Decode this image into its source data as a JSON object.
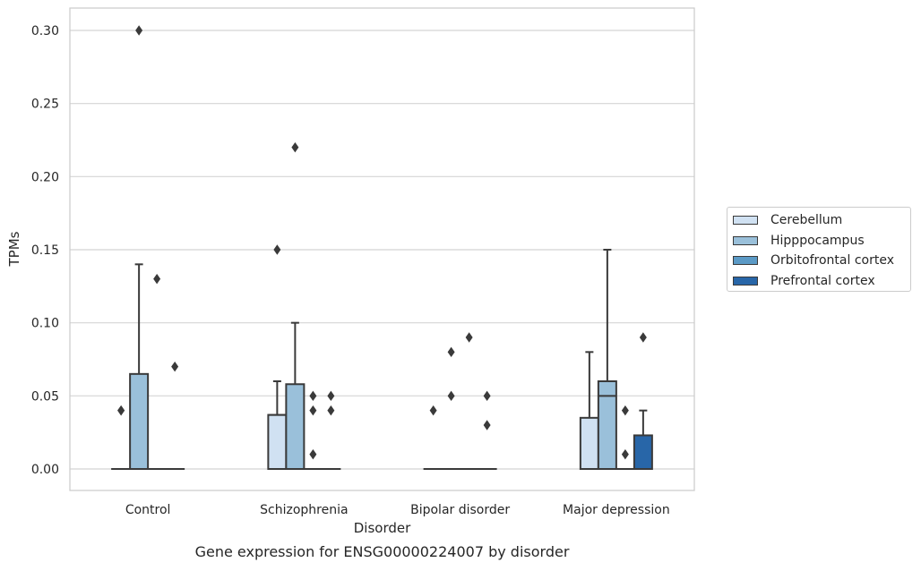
{
  "chart_data": {
    "type": "box",
    "title": "Gene expression for ENSG00000224007 by disorder",
    "xlabel": "Disorder",
    "ylabel": "TPMs",
    "ylim": [
      -0.015,
      0.315
    ],
    "y_ticks": [
      "0.00",
      "0.05",
      "0.10",
      "0.15",
      "0.20",
      "0.25",
      "0.30"
    ],
    "y_tick_values": [
      0,
      0.05,
      0.1,
      0.15,
      0.2,
      0.25,
      0.3
    ],
    "grid": true,
    "legend_position": "right",
    "categories": [
      "Control",
      "Schizophrenia",
      "Bipolar disorder",
      "Major depression"
    ],
    "series": [
      {
        "name": "Cerebellum",
        "color": "#d0e1f2",
        "boxes": [
          {
            "q1": 0,
            "median": 0,
            "q3": 0,
            "whisker_low": 0,
            "whisker_high": 0,
            "outliers": [
              0.04,
              0.04
            ]
          },
          {
            "q1": 0,
            "median": 0.037,
            "q3": 0.037,
            "whisker_low": 0,
            "whisker_high": 0.06,
            "outliers": [
              0.15
            ]
          },
          {
            "q1": 0,
            "median": 0,
            "q3": 0,
            "whisker_low": 0,
            "whisker_high": 0,
            "outliers": [
              0.04
            ]
          },
          {
            "q1": 0,
            "median": 0,
            "q3": 0.035,
            "whisker_low": 0,
            "whisker_high": 0.08,
            "outliers": []
          }
        ]
      },
      {
        "name": "Hipppocampus",
        "color": "#9ac0da",
        "boxes": [
          {
            "q1": 0,
            "median": 0,
            "q3": 0.065,
            "whisker_low": 0,
            "whisker_high": 0.14,
            "outliers": [
              0.3
            ]
          },
          {
            "q1": 0,
            "median": 0,
            "q3": 0.058,
            "whisker_low": 0,
            "whisker_high": 0.1,
            "outliers": [
              0.22
            ]
          },
          {
            "q1": 0,
            "median": 0,
            "q3": 0,
            "whisker_low": 0,
            "whisker_high": 0,
            "outliers": [
              0.05,
              0.08
            ]
          },
          {
            "q1": 0,
            "median": 0.05,
            "q3": 0.06,
            "whisker_low": 0,
            "whisker_high": 0.15,
            "outliers": []
          }
        ]
      },
      {
        "name": "Orbitofrontal cortex",
        "color": "#5b9ac6",
        "boxes": [
          {
            "q1": 0,
            "median": 0,
            "q3": 0,
            "whisker_low": 0,
            "whisker_high": 0,
            "outliers": [
              0.13
            ]
          },
          {
            "q1": 0,
            "median": 0,
            "q3": 0,
            "whisker_low": 0,
            "whisker_high": 0,
            "outliers": [
              0.05,
              0.04,
              0.01
            ]
          },
          {
            "q1": 0,
            "median": 0,
            "q3": 0,
            "whisker_low": 0,
            "whisker_high": 0,
            "outliers": [
              0.09
            ]
          },
          {
            "q1": 0,
            "median": 0,
            "q3": 0,
            "whisker_low": 0,
            "whisker_high": 0,
            "outliers": [
              0.04,
              0.01
            ]
          }
        ]
      },
      {
        "name": "Prefrontal cortex",
        "color": "#2866a8",
        "boxes": [
          {
            "q1": 0,
            "median": 0,
            "q3": 0,
            "whisker_low": 0,
            "whisker_high": 0,
            "outliers": [
              0.07
            ]
          },
          {
            "q1": 0,
            "median": 0,
            "q3": 0,
            "whisker_low": 0,
            "whisker_high": 0,
            "outliers": [
              0.05,
              0.04
            ]
          },
          {
            "q1": 0,
            "median": 0,
            "q3": 0,
            "whisker_low": 0,
            "whisker_high": 0,
            "outliers": [
              0.05,
              0.03
            ]
          },
          {
            "q1": 0,
            "median": 0,
            "q3": 0.023,
            "whisker_low": 0,
            "whisker_high": 0.04,
            "outliers": [
              0.09
            ]
          }
        ]
      }
    ]
  }
}
